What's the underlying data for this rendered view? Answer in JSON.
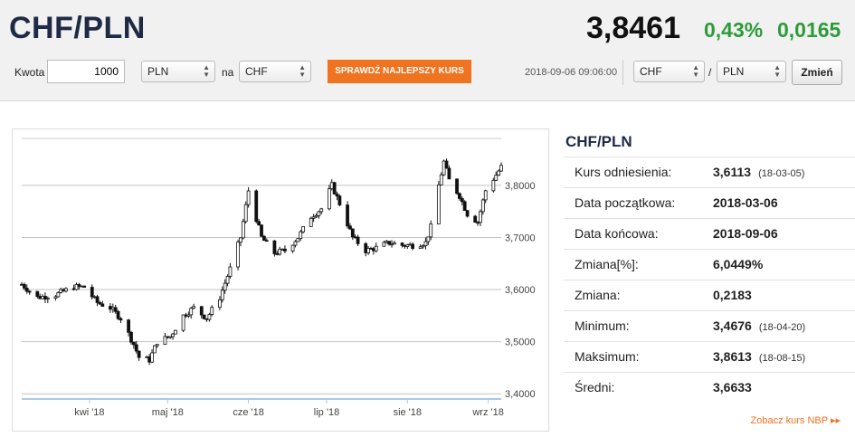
{
  "header": {
    "pair": "CHF/PLN",
    "rate": "3,8461",
    "change_pct": "0,43%",
    "change_abs": "0,0165",
    "change_color": "#2e9b3a"
  },
  "toolbar": {
    "amount_label": "Kwota",
    "amount_value": "1000",
    "from_currency": "PLN",
    "to_label": "na",
    "to_currency": "CHF",
    "best_rate_button": "SPRAWDŹ NAJLEPSZY KURS",
    "datetime": "2018-09-06 09:06:00",
    "pair_base": "CHF",
    "pair_separator": "/",
    "pair_quote": "PLN",
    "change_button": "Zmień"
  },
  "stats": {
    "title": "CHF/PLN",
    "rows": [
      {
        "label": "Kurs odniesienia:",
        "value": "3,6113",
        "date": "(18-03-05)"
      },
      {
        "label": "Data początkowa:",
        "value": "2018-03-06",
        "date": ""
      },
      {
        "label": "Data końcowa:",
        "value": "2018-09-06",
        "date": ""
      },
      {
        "label": "Zmiana[%]:",
        "value": "6,0449%",
        "date": ""
      },
      {
        "label": "Zmiana:",
        "value": "0,2183",
        "date": ""
      },
      {
        "label": "Minimum:",
        "value": "3,4676",
        "date": "(18-04-20)"
      },
      {
        "label": "Maksimum:",
        "value": "3,8613",
        "date": "(18-08-15)"
      },
      {
        "label": "Średni:",
        "value": "3,6633",
        "date": ""
      }
    ],
    "nbp_link": "Zobacz kurs NBP ▸▸",
    "accent": "#f07320"
  },
  "chart_data": {
    "type": "candlestick",
    "ylim": [
      3.39,
      3.89
    ],
    "y_ticks": [
      "3,4000",
      "3,5000",
      "3,6000",
      "3,7000",
      "3,8000"
    ],
    "y_tick_values": [
      3.4,
      3.5,
      3.6,
      3.7,
      3.8
    ],
    "x_labels": [
      "kwi '18",
      "maj '18",
      "cze '18",
      "lip '18",
      "sie '18",
      "wrz '18"
    ],
    "x_label_dates": [
      "2018-04-01",
      "2018-05-01",
      "2018-06-01",
      "2018-07-01",
      "2018-08-01",
      "2018-09-01"
    ],
    "x_range": [
      "2018-03-06",
      "2018-09-06"
    ],
    "grid": true,
    "close_series": [
      [
        "2018-03-06",
        3.61
      ],
      [
        "2018-03-12",
        3.585
      ],
      [
        "2018-03-19",
        3.59
      ],
      [
        "2018-03-26",
        3.605
      ],
      [
        "2018-03-30",
        3.605
      ],
      [
        "2018-04-04",
        3.575
      ],
      [
        "2018-04-09",
        3.565
      ],
      [
        "2018-04-13",
        3.545
      ],
      [
        "2018-04-18",
        3.495
      ],
      [
        "2018-04-20",
        3.47
      ],
      [
        "2018-04-24",
        3.465
      ],
      [
        "2018-04-27",
        3.5
      ],
      [
        "2018-05-02",
        3.51
      ],
      [
        "2018-05-07",
        3.55
      ],
      [
        "2018-05-11",
        3.565
      ],
      [
        "2018-05-16",
        3.545
      ],
      [
        "2018-05-21",
        3.585
      ],
      [
        "2018-05-25",
        3.64
      ],
      [
        "2018-05-29",
        3.7
      ],
      [
        "2018-06-01",
        3.79
      ],
      [
        "2018-06-06",
        3.7
      ],
      [
        "2018-06-11",
        3.67
      ],
      [
        "2018-06-15",
        3.675
      ],
      [
        "2018-06-20",
        3.7
      ],
      [
        "2018-06-25",
        3.74
      ],
      [
        "2018-06-29",
        3.755
      ],
      [
        "2018-07-03",
        3.8
      ],
      [
        "2018-07-06",
        3.765
      ],
      [
        "2018-07-11",
        3.7
      ],
      [
        "2018-07-16",
        3.675
      ],
      [
        "2018-07-20",
        3.68
      ],
      [
        "2018-07-25",
        3.69
      ],
      [
        "2018-07-30",
        3.685
      ],
      [
        "2018-08-03",
        3.685
      ],
      [
        "2018-08-08",
        3.69
      ],
      [
        "2018-08-10",
        3.72
      ],
      [
        "2018-08-13",
        3.8
      ],
      [
        "2018-08-15",
        3.845
      ],
      [
        "2018-08-17",
        3.81
      ],
      [
        "2018-08-21",
        3.78
      ],
      [
        "2018-08-24",
        3.745
      ],
      [
        "2018-08-28",
        3.73
      ],
      [
        "2018-08-31",
        3.79
      ],
      [
        "2018-09-04",
        3.82
      ],
      [
        "2018-09-06",
        3.835
      ]
    ]
  }
}
